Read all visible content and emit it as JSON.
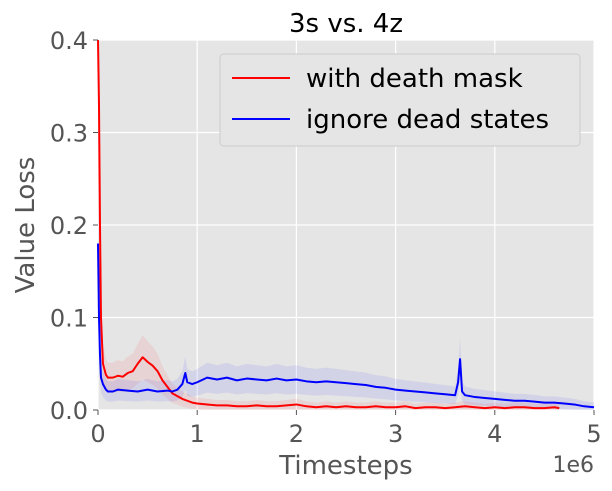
{
  "chart_data": {
    "type": "line",
    "title": "3s vs. 4z",
    "xlabel": "Timesteps",
    "ylabel": "Value Loss",
    "x_offset_label": "1e6",
    "xlim": [
      0,
      5
    ],
    "ylim": [
      0,
      0.4
    ],
    "x_ticks": [
      "0",
      "1",
      "2",
      "3",
      "4",
      "5"
    ],
    "y_ticks": [
      "0.0",
      "0.1",
      "0.2",
      "0.3",
      "0.4"
    ],
    "grid": true,
    "legend_position": "top-right",
    "series": [
      {
        "name": "with death mask",
        "color": "#ff0000",
        "x": [
          0,
          0.01,
          0.02,
          0.03,
          0.05,
          0.08,
          0.1,
          0.15,
          0.2,
          0.25,
          0.3,
          0.35,
          0.4,
          0.45,
          0.5,
          0.55,
          0.6,
          0.65,
          0.7,
          0.75,
          0.8,
          0.85,
          0.9,
          0.95,
          1.0,
          1.1,
          1.2,
          1.3,
          1.4,
          1.5,
          1.6,
          1.7,
          1.8,
          1.9,
          2.0,
          2.1,
          2.2,
          2.3,
          2.4,
          2.5,
          2.6,
          2.7,
          2.8,
          2.9,
          3.0,
          3.1,
          3.2,
          3.3,
          3.4,
          3.5,
          3.6,
          3.7,
          3.8,
          3.9,
          4.0,
          4.1,
          4.2,
          4.3,
          4.4,
          4.5,
          4.6,
          4.65
        ],
        "values": [
          0.4,
          0.33,
          0.2,
          0.1,
          0.05,
          0.038,
          0.035,
          0.035,
          0.037,
          0.036,
          0.04,
          0.042,
          0.05,
          0.057,
          0.052,
          0.048,
          0.042,
          0.032,
          0.025,
          0.018,
          0.015,
          0.012,
          0.01,
          0.008,
          0.007,
          0.006,
          0.005,
          0.005,
          0.004,
          0.004,
          0.005,
          0.004,
          0.004,
          0.005,
          0.006,
          0.004,
          0.003,
          0.004,
          0.003,
          0.004,
          0.003,
          0.003,
          0.004,
          0.003,
          0.003,
          0.004,
          0.002,
          0.003,
          0.003,
          0.002,
          0.003,
          0.004,
          0.003,
          0.002,
          0.003,
          0.002,
          0.003,
          0.003,
          0.002,
          0.002,
          0.003,
          0.002
        ]
      },
      {
        "name": "ignore dead states",
        "color": "#0000ff",
        "x": [
          0,
          0.01,
          0.02,
          0.03,
          0.05,
          0.08,
          0.1,
          0.15,
          0.2,
          0.3,
          0.4,
          0.5,
          0.6,
          0.7,
          0.75,
          0.8,
          0.85,
          0.88,
          0.9,
          0.95,
          1.0,
          1.1,
          1.2,
          1.3,
          1.4,
          1.5,
          1.6,
          1.7,
          1.8,
          1.9,
          2.0,
          2.1,
          2.2,
          2.3,
          2.4,
          2.5,
          2.6,
          2.7,
          2.8,
          2.9,
          3.0,
          3.1,
          3.2,
          3.3,
          3.4,
          3.5,
          3.6,
          3.63,
          3.65,
          3.67,
          3.7,
          3.8,
          3.9,
          4.0,
          4.1,
          4.2,
          4.3,
          4.4,
          4.5,
          4.6,
          4.7,
          4.8,
          4.9,
          5.0
        ],
        "values": [
          0.18,
          0.1,
          0.06,
          0.035,
          0.028,
          0.022,
          0.02,
          0.02,
          0.022,
          0.021,
          0.02,
          0.022,
          0.02,
          0.021,
          0.02,
          0.022,
          0.028,
          0.04,
          0.03,
          0.028,
          0.03,
          0.035,
          0.033,
          0.035,
          0.032,
          0.034,
          0.033,
          0.032,
          0.034,
          0.032,
          0.033,
          0.031,
          0.03,
          0.031,
          0.03,
          0.029,
          0.028,
          0.027,
          0.025,
          0.024,
          0.022,
          0.021,
          0.02,
          0.019,
          0.018,
          0.017,
          0.016,
          0.03,
          0.055,
          0.02,
          0.016,
          0.014,
          0.013,
          0.012,
          0.011,
          0.01,
          0.01,
          0.009,
          0.008,
          0.008,
          0.007,
          0.006,
          0.004,
          0.003
        ]
      }
    ]
  }
}
